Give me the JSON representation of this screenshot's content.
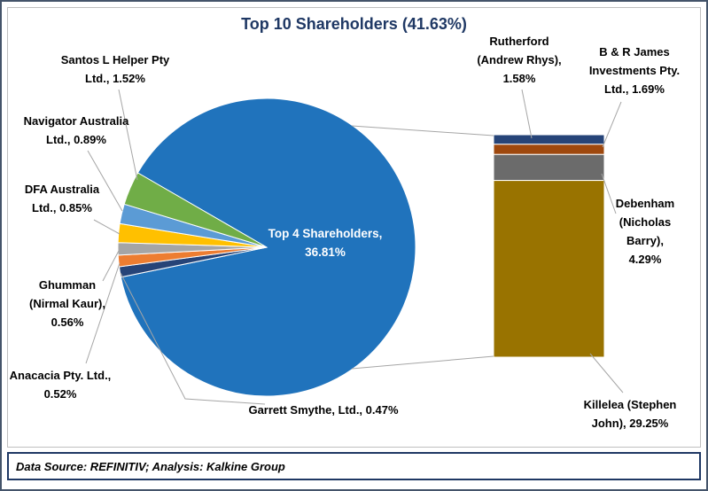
{
  "title": "Top 10 Shareholders (41.63%)",
  "footer": {
    "text": "Data Source: REFINITIV; Analysis: Kalkine Group"
  },
  "labels": {
    "santos": "Santos L Helper Pty\nLtd., 1.52%",
    "navigator": "Navigator Australia\nLtd., 0.89%",
    "dfa": "DFA Australia\nLtd., 0.85%",
    "ghumman": "Ghumman\n(Nirmal Kaur),\n0.56%",
    "anacacia": "Anacacia Pty. Ltd.,\n0.52%",
    "garrett": "Garrett Smythe, Ltd., 0.47%",
    "top4": "Top 4 Shareholders,\n36.81%",
    "rutherford": "Rutherford\n(Andrew Rhys),\n1.58%",
    "bandr": "B & R James\nInvestments Pty.\nLtd., 1.69%",
    "debenham": "Debenham\n(Nicholas\nBarry),\n4.29%",
    "killelea": "Killelea (Stephen\nJohn), 29.25%"
  },
  "chart_data": {
    "type": "bar-of-pie",
    "title": "Top 10 Shareholders (41.63%)",
    "total_percent": 41.63,
    "legend": "none",
    "pie": {
      "aggregate": {
        "label": "Top 4 Shareholders",
        "value": 36.81,
        "color": "#2073BC"
      },
      "slices_clockwise_from_bottom_left": [
        {
          "label": "Garrett Smythe, Ltd.",
          "value": 0.47,
          "color": "#264478"
        },
        {
          "label": "Anacacia Pty. Ltd.",
          "value": 0.52,
          "color": "#ED7D31"
        },
        {
          "label": "Ghumman (Nirmal Kaur)",
          "value": 0.56,
          "color": "#A5A5A5"
        },
        {
          "label": "DFA Australia Ltd.",
          "value": 0.85,
          "color": "#FFC000"
        },
        {
          "label": "Navigator Australia Ltd.",
          "value": 0.89,
          "color": "#5B9BD5"
        },
        {
          "label": "Santos L Helper Pty Ltd.",
          "value": 1.52,
          "color": "#70AD47"
        }
      ]
    },
    "bar": {
      "represents": "breakdown of Top 4 Shareholders slice",
      "segments_top_to_bottom": [
        {
          "label": "Rutherford (Andrew Rhys)",
          "value": 1.58,
          "color": "#264478"
        },
        {
          "label": "B & R James Investments Pty. Ltd.",
          "value": 1.69,
          "color": "#9E480E"
        },
        {
          "label": "Debenham (Nicholas Barry)",
          "value": 4.29,
          "color": "#6B6B6B"
        },
        {
          "label": "Killelea (Stephen John)",
          "value": 29.25,
          "color": "#997300"
        }
      ]
    },
    "source_note": "Data Source: REFINITIV; Analysis: Kalkine Group"
  }
}
